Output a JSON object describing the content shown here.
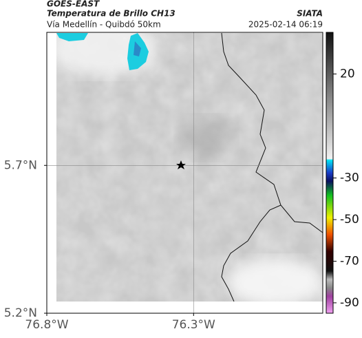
{
  "header": {
    "title": "GOES-EAST",
    "subtitle": "Temperatura de Brillo CH13",
    "route": "Vía Medellín - Quibdó 50km",
    "source": "SIATA",
    "timestamp": "2025-02-14 06:19"
  },
  "map": {
    "xlim": [
      -76.8,
      -75.86
    ],
    "ylim": [
      5.2,
      6.15
    ],
    "xticks": [
      {
        "value": -76.8,
        "label": "76.8°W"
      },
      {
        "value": -76.3,
        "label": "76.3°W"
      }
    ],
    "yticks": [
      {
        "value": 5.7,
        "label": "5.7°N"
      },
      {
        "value": 5.2,
        "label": "5.2°N"
      }
    ],
    "grid": true
  },
  "colorbar": {
    "ylim": [
      -95,
      40
    ],
    "ticks": [
      20,
      -30,
      -50,
      -70,
      -90
    ]
  }
}
